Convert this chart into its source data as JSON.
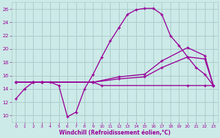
{
  "bg_color": "#cceae7",
  "grid_color": "#aacccc",
  "line_color": "#990099",
  "xlabel": "Windchill (Refroidissement éolien,°C)",
  "xlim": [
    -0.5,
    23.5
  ],
  "ylim": [
    9,
    27
  ],
  "yticks": [
    10,
    12,
    14,
    16,
    18,
    20,
    22,
    24,
    26
  ],
  "xticks": [
    0,
    1,
    2,
    3,
    4,
    5,
    6,
    7,
    8,
    9,
    10,
    11,
    12,
    13,
    14,
    15,
    16,
    17,
    18,
    19,
    20,
    21,
    22,
    23
  ],
  "curve1_x": [
    0,
    1,
    2,
    3,
    4,
    5,
    6,
    7,
    8,
    9,
    10,
    11,
    12,
    13,
    14,
    15,
    16,
    17,
    18,
    19,
    20,
    21,
    22,
    23
  ],
  "curve1_y": [
    12.5,
    14.0,
    15.0,
    15.0,
    15.0,
    14.5,
    9.8,
    10.5,
    14.0,
    16.2,
    18.8,
    21.2,
    23.2,
    25.2,
    25.9,
    26.1,
    26.1,
    25.2,
    22.0,
    20.5,
    18.8,
    17.2,
    16.2,
    14.5
  ],
  "curve2_x": [
    0,
    2,
    3,
    9,
    12,
    15,
    17,
    20,
    22,
    23
  ],
  "curve2_y": [
    15.0,
    15.0,
    15.0,
    15.0,
    15.8,
    16.2,
    18.2,
    20.2,
    19.0,
    14.5
  ],
  "curve3_x": [
    0,
    2,
    3,
    9,
    12,
    15,
    17,
    20,
    22,
    23
  ],
  "curve3_y": [
    15.0,
    15.0,
    15.0,
    15.0,
    15.5,
    15.8,
    17.2,
    18.8,
    18.5,
    14.5
  ],
  "curve4_x": [
    0,
    2,
    3,
    9,
    10,
    20,
    22,
    23
  ],
  "curve4_y": [
    15.0,
    15.0,
    15.0,
    15.0,
    14.5,
    14.5,
    14.5,
    14.5
  ],
  "marker": "+"
}
